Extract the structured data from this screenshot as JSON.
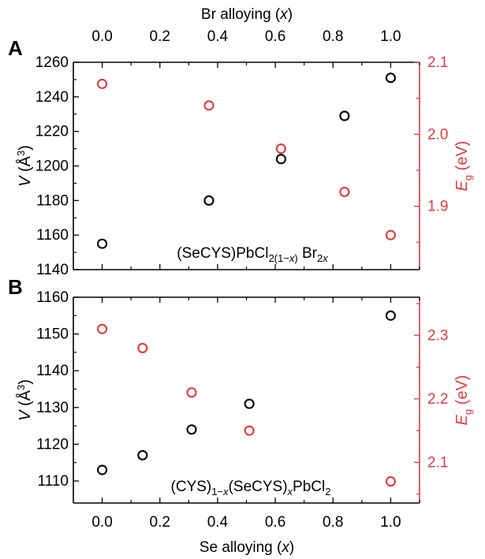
{
  "colors": {
    "left": "#000000",
    "right": "#e8383d"
  },
  "shared": {
    "top_xlabel_main": "Br alloying (",
    "top_xlabel_var": "x",
    "top_xlabel_end": ")",
    "bottom_xlabel_main": "Se alloying (",
    "bottom_xlabel_var": "x",
    "bottom_xlabel_end": ")",
    "xticks": [
      "0.0",
      "0.2",
      "0.4",
      "0.6",
      "0.8",
      "1.0"
    ]
  },
  "chart_data": [
    {
      "panel_label": "A",
      "type": "scatter",
      "xlabel": "Br alloying (x)",
      "xlim": [
        -0.1,
        1.1
      ],
      "ylabel_left": "V (Å3)",
      "ylim_left": [
        1140,
        1260
      ],
      "yticks_left": [
        "1140",
        "1160",
        "1180",
        "1200",
        "1220",
        "1240",
        "1260"
      ],
      "ylabel_right": "Eg (eV)",
      "ylim_right": [
        1.812,
        2.1
      ],
      "yticks_right": [
        "1.9",
        "2.0",
        "2.1"
      ],
      "annotation": {
        "p1": "(SeCYS)PbCl",
        "s1": "2(1−",
        "s1v": "x",
        "s1e": ")",
        "p2": " Br",
        "s2": "2",
        "s2v": "x"
      },
      "series": [
        {
          "axis": "left",
          "x": [
            0.0,
            0.37,
            0.62,
            0.84,
            1.0
          ],
          "y": [
            1155,
            1180,
            1204,
            1229,
            1251
          ]
        },
        {
          "axis": "right",
          "x": [
            0.0,
            0.37,
            0.62,
            0.84,
            1.0
          ],
          "y": [
            2.07,
            2.04,
            1.98,
            1.92,
            1.86
          ]
        }
      ]
    },
    {
      "panel_label": "B",
      "type": "scatter",
      "xlabel": "Se alloying (x)",
      "xlim": [
        -0.1,
        1.1
      ],
      "ylabel_left": "V (Å3)",
      "ylim_left": [
        1104,
        1160
      ],
      "yticks_left": [
        "1110",
        "1120",
        "1130",
        "1140",
        "1150",
        "1160"
      ],
      "ylabel_right": "Eg (eV)",
      "ylim_right": [
        2.036,
        2.36
      ],
      "yticks_right": [
        "2.1",
        "2.2",
        "2.3"
      ],
      "annotation": {
        "p1": "(CYS)",
        "s1": "1−",
        "s1v": "x",
        "p2": "(SeCYS)",
        "s2v": "x",
        "p3": "PbCl",
        "s3": "2"
      },
      "series": [
        {
          "axis": "left",
          "x": [
            0.0,
            0.14,
            0.31,
            0.51,
            1.0
          ],
          "y": [
            1113,
            1117,
            1124,
            1131,
            1155
          ]
        },
        {
          "axis": "right",
          "x": [
            0.0,
            0.14,
            0.31,
            0.51,
            1.0
          ],
          "y": [
            2.31,
            2.28,
            2.21,
            2.15,
            2.07
          ]
        }
      ]
    }
  ]
}
